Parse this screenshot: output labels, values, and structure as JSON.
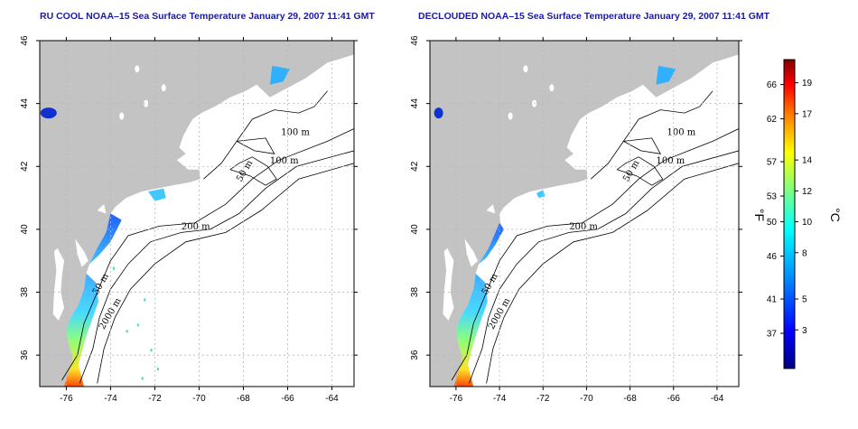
{
  "maps": [
    {
      "title": "RU COOL NOAA–15 Sea Surface Temperature January 29, 2007 11:41 GMT",
      "variant": "raw",
      "x_ticks": [
        "-76",
        "-74",
        "-72",
        "-70",
        "-68",
        "-66",
        "-64"
      ],
      "y_ticks": [
        "36",
        "38",
        "40",
        "42",
        "44",
        "46"
      ],
      "contour_labels": [
        "100 m",
        "100 m",
        "50 m",
        "200 m",
        "50 m",
        "2000 m"
      ]
    },
    {
      "title": "DECLOUDED NOAA–15 Sea Surface Temperature January 29, 2007 11:41 GMT",
      "variant": "declouded",
      "x_ticks": [
        "-76",
        "-74",
        "-72",
        "-70",
        "-68",
        "-66",
        "-64"
      ],
      "y_ticks": [
        "36",
        "38",
        "40",
        "42",
        "44",
        "46"
      ],
      "contour_labels": [
        "100 m",
        "100 m",
        "50 m",
        "200 m",
        "50 m",
        "2000 m"
      ]
    }
  ],
  "map_bounds": {
    "lon_min": -77.2,
    "lon_max": -63,
    "lat_min": 35,
    "lat_max": 46
  },
  "colorbar": {
    "fahrenheit_unit": "°F",
    "celsius_unit": "°C",
    "fahrenheit_ticks": [
      "66",
      "62",
      "57",
      "53",
      "50",
      "46",
      "41",
      "37"
    ],
    "celsius_ticks": [
      "19",
      "17",
      "14",
      "12",
      "10",
      "8",
      "5",
      "3"
    ],
    "fahrenheit_values": [
      66,
      62,
      57,
      53,
      50,
      46,
      41,
      37
    ],
    "celsius_values": [
      19,
      17,
      14,
      12,
      10,
      8,
      5,
      3
    ],
    "celsius_range": [
      0.5,
      20.5
    ],
    "colors": [
      "#000080",
      "#0000ff",
      "#0080ff",
      "#00ffff",
      "#80ff80",
      "#ffff00",
      "#ff8000",
      "#ff0000",
      "#800000"
    ]
  },
  "colors": {
    "land": "#c3c3c3",
    "grid": "#b8b8b8",
    "contour": "#000000",
    "title": "#1a1aa0"
  }
}
